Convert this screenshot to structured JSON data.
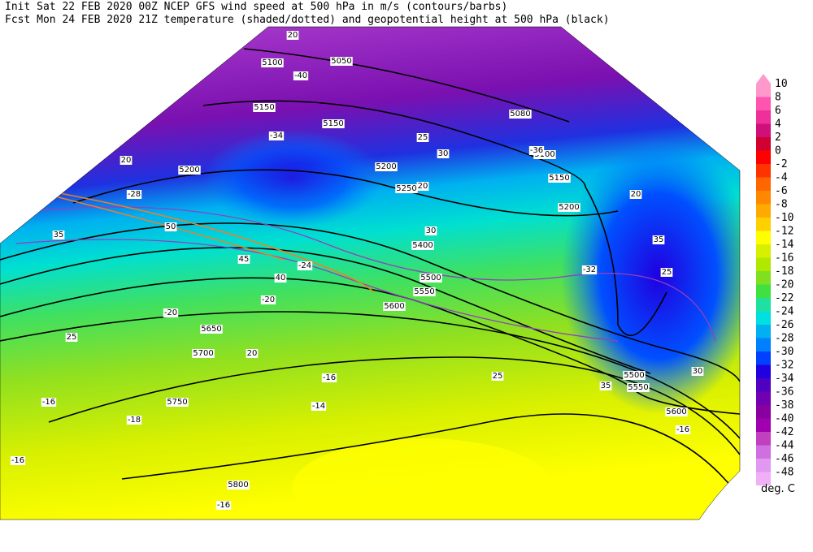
{
  "header": {
    "line1": "Init  Sat 22 FEB 2020 00Z   NCEP GFS wind speed at 500 hPa in m/s (contours/barbs)",
    "line2": "Fcst Mon 24 FEB 2020 21Z  temperature (shaded/dotted) and geopotential height at 500 hPa (black)"
  },
  "colorbar": {
    "ticks": [
      10,
      8,
      6,
      4,
      2,
      0,
      -2,
      -4,
      -6,
      -8,
      -10,
      -12,
      -14,
      -16,
      -18,
      -20,
      -22,
      -24,
      -26,
      -28,
      -30,
      -32,
      -34,
      -36,
      -38,
      -40,
      -42,
      -44,
      -46,
      -48
    ],
    "colors": [
      "#ff99cc",
      "#ff55b0",
      "#f0309a",
      "#d0107a",
      "#d00030",
      "#ff0000",
      "#ff3300",
      "#ff6600",
      "#ff8800",
      "#ffaa00",
      "#ffd000",
      "#ffff00",
      "#d8f000",
      "#b0e800",
      "#80e020",
      "#40e040",
      "#20e0a0",
      "#00e0e0",
      "#00b0f0",
      "#0080ff",
      "#0040ff",
      "#2000e0",
      "#5000c0",
      "#7000b0",
      "#8800a0",
      "#a000b0",
      "#c040c0",
      "#d070e0",
      "#e098f0",
      "#f0b0f8"
    ],
    "unit": "deg. C"
  },
  "height_labels": [
    5100,
    5050,
    5150,
    5150,
    5080,
    5100,
    5150,
    5200,
    5200,
    5250,
    5200,
    5400,
    5500,
    5550,
    5600,
    5650,
    5700,
    5750,
    5800,
    5600,
    5550,
    5500
  ],
  "wind_labels": [
    20,
    20,
    25,
    30,
    35,
    40,
    45,
    50,
    30,
    35,
    25,
    20,
    20,
    25,
    30,
    35,
    20,
    25
  ],
  "temp_labels": [
    -40,
    -36,
    -34,
    -32,
    -28,
    -24,
    -20,
    -16,
    -16,
    -14,
    -16,
    -16,
    -18,
    -20,
    -16
  ]
}
